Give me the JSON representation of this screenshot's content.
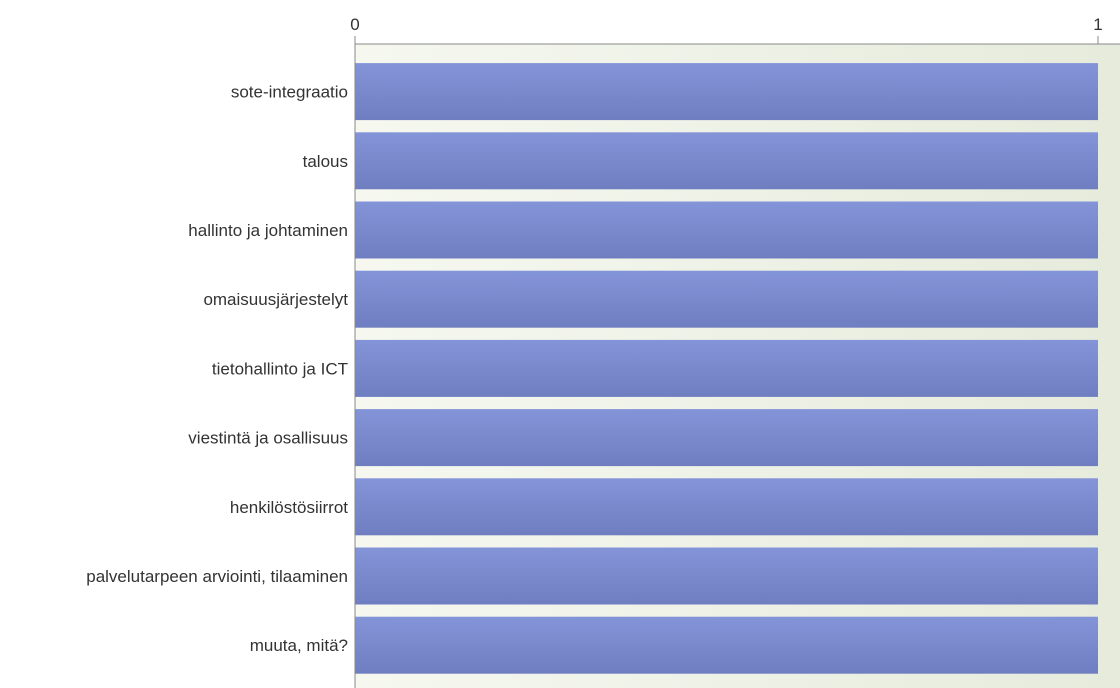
{
  "chart_data": {
    "type": "bar",
    "orientation": "horizontal",
    "categories": [
      "sote-integraatio",
      "talous",
      "hallinto ja johtaminen",
      "omaisuusjärjestelyt",
      "tietohallinto ja ICT",
      "viestintä ja osallisuus",
      "henkilöstösiirrot",
      "palvelutarpeen arviointi, tilaaminen",
      "muuta, mitä?"
    ],
    "values": [
      1,
      1,
      1,
      1,
      1,
      1,
      1,
      1,
      1
    ],
    "xlim": [
      0,
      1
    ],
    "x_ticks": [
      "0",
      "1"
    ],
    "x_axis_position": "top",
    "grid": false,
    "legend": "none",
    "title": "",
    "xlabel": "",
    "ylabel": "",
    "colors": {
      "bar_top": "#8494d8",
      "bar_bottom": "#6f7ec0",
      "plot_background_left": "#f6f8f0",
      "plot_background_right": "#e6ebdc",
      "axis_line": "#888888"
    }
  }
}
